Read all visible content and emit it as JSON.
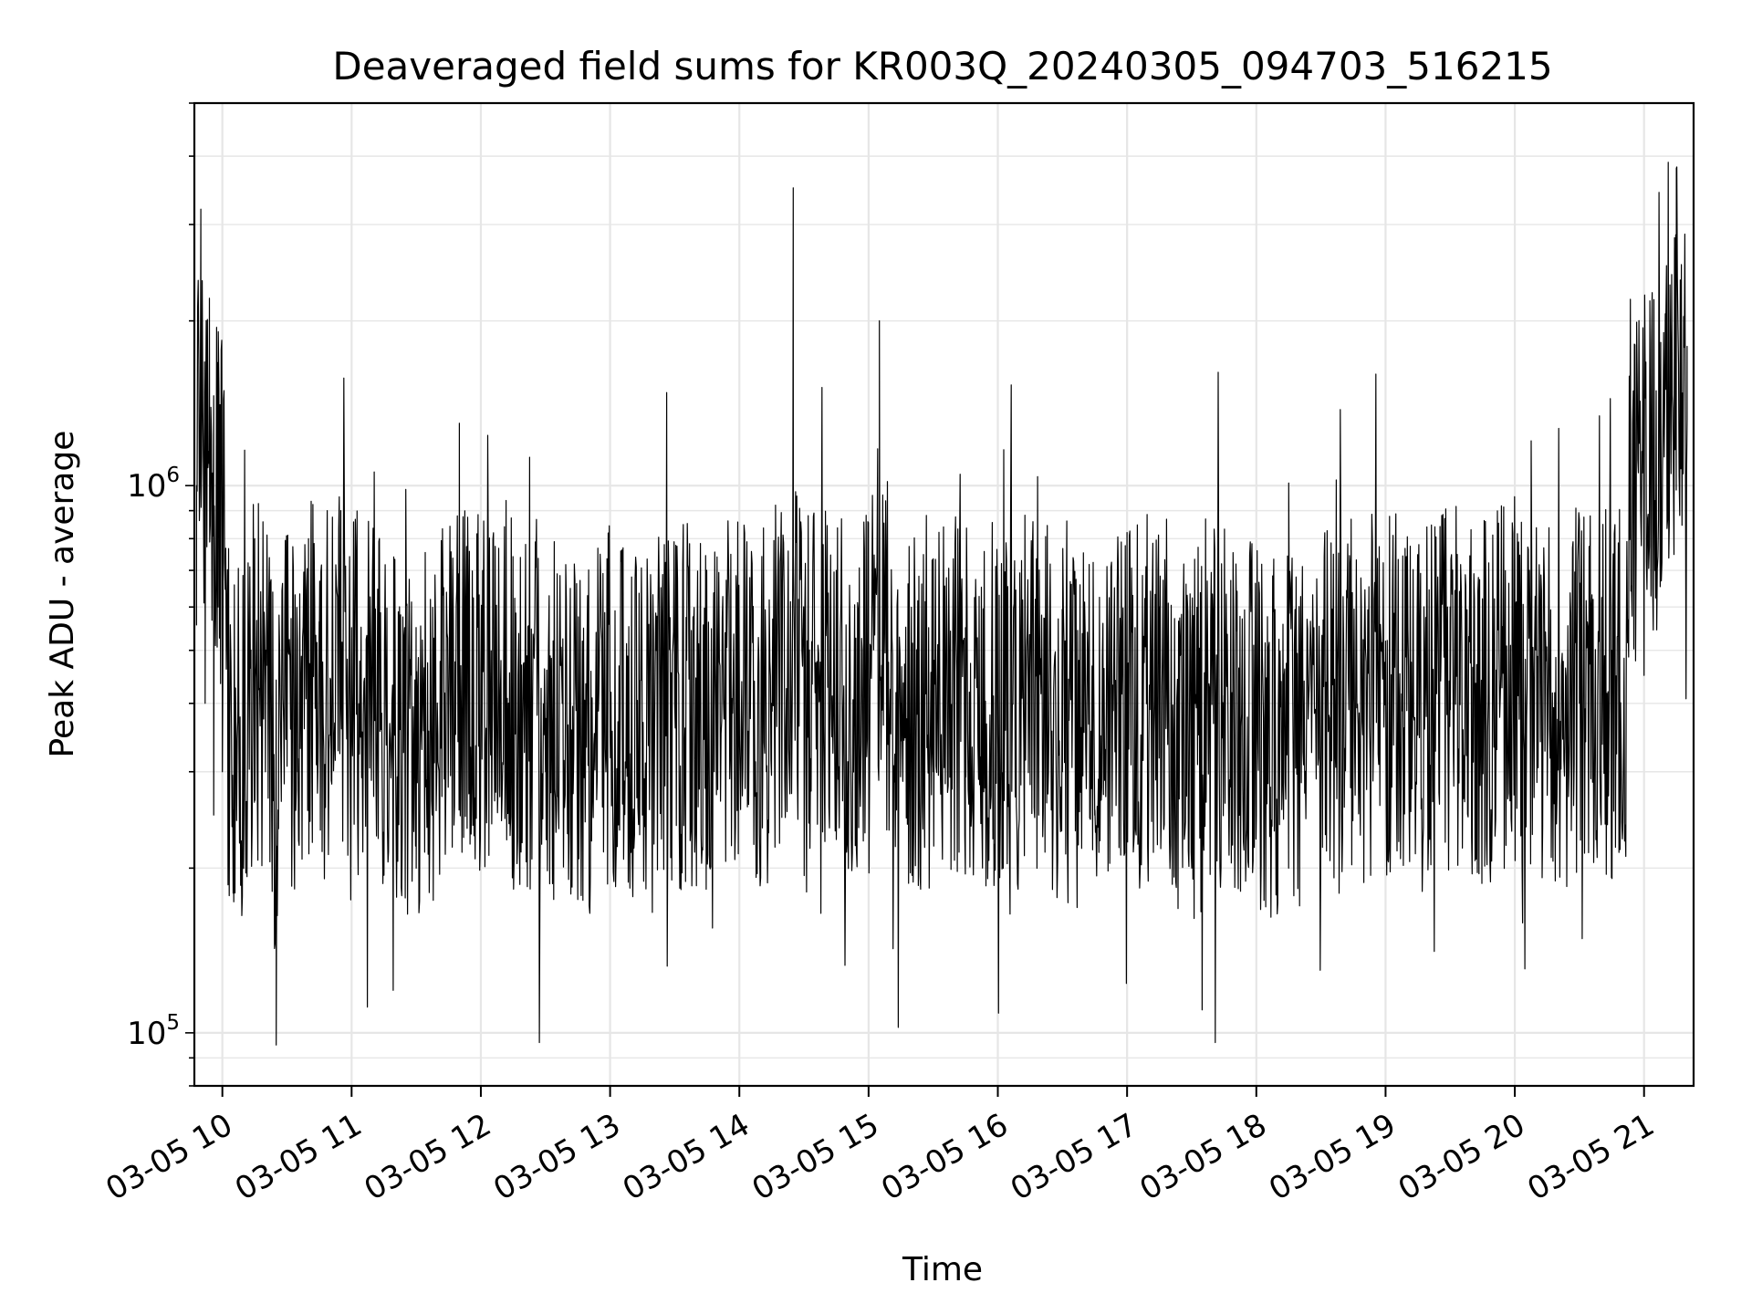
{
  "chart_data": {
    "type": "line",
    "title": "Deaveraged field sums for KR003Q_20240305_094703_516215",
    "xlabel": "Time",
    "ylabel": "Peak ADU - average",
    "yscale": "log",
    "grid": true,
    "color": "#000000",
    "xlim": [
      "2024-03-05T09:47:00",
      "2024-03-05T21:23:00"
    ],
    "ylim": [
      80000,
      5000000
    ],
    "x_ticks": [
      "03-05 10",
      "03-05 11",
      "03-05 12",
      "03-05 13",
      "03-05 14",
      "03-05 15",
      "03-05 16",
      "03-05 17",
      "03-05 18",
      "03-05 19",
      "03-05 20",
      "03-05 21"
    ],
    "y_ticks": [
      {
        "base": "10",
        "exp": "5",
        "value": 100000
      },
      {
        "base": "10",
        "exp": "6",
        "value": 1000000
      }
    ],
    "series": [
      {
        "x": [
          "2024-03-05T09:48",
          "2024-03-05T09:50",
          "2024-03-05T09:52",
          "2024-03-05T09:54",
          "2024-03-05T09:56",
          "2024-03-05T09:58",
          "2024-03-05T10:00",
          "2024-03-05T10:05",
          "2024-03-05T10:10",
          "2024-03-05T10:15",
          "2024-03-05T10:20",
          "2024-03-05T10:25",
          "2024-03-05T10:30",
          "2024-03-05T10:35",
          "2024-03-05T10:40",
          "2024-03-05T10:45",
          "2024-03-05T10:50",
          "2024-03-05T10:55",
          "2024-03-05T11:00",
          "2024-03-05T11:10",
          "2024-03-05T11:20",
          "2024-03-05T11:30",
          "2024-03-05T11:40",
          "2024-03-05T11:50",
          "2024-03-05T12:00",
          "2024-03-05T12:15",
          "2024-03-05T12:30",
          "2024-03-05T12:45",
          "2024-03-05T13:00",
          "2024-03-05T13:15",
          "2024-03-05T13:30",
          "2024-03-05T13:45",
          "2024-03-05T14:00",
          "2024-03-05T14:15",
          "2024-03-05T14:25",
          "2024-03-05T14:30",
          "2024-03-05T14:45",
          "2024-03-05T15:00",
          "2024-03-05T15:05",
          "2024-03-05T15:15",
          "2024-03-05T15:30",
          "2024-03-05T15:45",
          "2024-03-05T16:00",
          "2024-03-05T16:15",
          "2024-03-05T16:30",
          "2024-03-05T16:45",
          "2024-03-05T17:00",
          "2024-03-05T17:15",
          "2024-03-05T17:30",
          "2024-03-05T17:45",
          "2024-03-05T18:00",
          "2024-03-05T18:15",
          "2024-03-05T18:30",
          "2024-03-05T18:45",
          "2024-03-05T19:00",
          "2024-03-05T19:15",
          "2024-03-05T19:30",
          "2024-03-05T19:45",
          "2024-03-05T20:00",
          "2024-03-05T20:15",
          "2024-03-05T20:30",
          "2024-03-05T20:45",
          "2024-03-05T21:00",
          "2024-03-05T21:05",
          "2024-03-05T21:10",
          "2024-03-05T21:15",
          "2024-03-05T21:20"
        ],
        "y": [
          1000000,
          3200000,
          400000,
          2200000,
          250000,
          600000,
          300000,
          180000,
          250000,
          800000,
          300000,
          95000,
          400000,
          300000,
          800000,
          500000,
          350000,
          900000,
          550000,
          450000,
          350000,
          200000,
          350000,
          1300000,
          450000,
          350000,
          300000,
          200000,
          350000,
          250000,
          400000,
          350000,
          450000,
          400000,
          3500000,
          500000,
          700000,
          500000,
          2000000,
          400000,
          300000,
          550000,
          350000,
          450000,
          300000,
          250000,
          300000,
          600000,
          200000,
          400000,
          250000,
          200000,
          300000,
          400000,
          500000,
          350000,
          600000,
          400000,
          700000,
          350000,
          400000,
          500000,
          450000,
          700000,
          1500000,
          3800000,
          1800000
        ]
      }
    ]
  }
}
